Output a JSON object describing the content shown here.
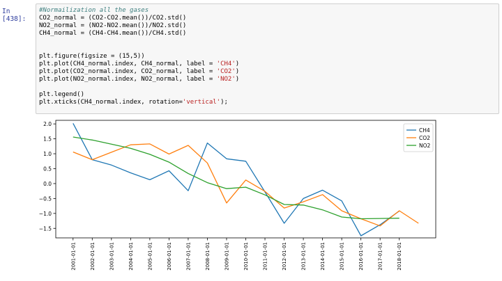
{
  "cell": {
    "prompt": "In [438]:",
    "code_lines": [
      [
        {
          "t": "#Normailization all the gases",
          "c": "cm"
        }
      ],
      [
        {
          "t": "CO2_normal = (CO2-CO2.mean())/CO2.std()",
          "c": ""
        }
      ],
      [
        {
          "t": "NO2_normal = (NO2-NO2.mean())/NO2.std()",
          "c": ""
        }
      ],
      [
        {
          "t": "CH4_normal = (CH4-CH4.mean())/CH4.std()",
          "c": ""
        }
      ],
      [],
      [],
      [
        {
          "t": "plt.figure(figsize = (15,5))",
          "c": ""
        }
      ],
      [
        {
          "t": "plt.plot(CH4_normal.index, CH4_normal, label = ",
          "c": ""
        },
        {
          "t": "'CH4'",
          "c": "st"
        },
        {
          "t": ")",
          "c": ""
        }
      ],
      [
        {
          "t": "plt.plot(CO2_normal.index, CO2_normal, label = ",
          "c": ""
        },
        {
          "t": "'CO2'",
          "c": "st"
        },
        {
          "t": ")",
          "c": ""
        }
      ],
      [
        {
          "t": "plt.plot(NO2_normal.index, NO2_normal, label = ",
          "c": ""
        },
        {
          "t": "'NO2'",
          "c": "st"
        },
        {
          "t": ")",
          "c": ""
        }
      ],
      [],
      [
        {
          "t": "plt.legend()",
          "c": ""
        }
      ],
      [
        {
          "t": "plt.xticks(CH4_normal.index, rotation=",
          "c": ""
        },
        {
          "t": "'vertical'",
          "c": "st"
        },
        {
          "t": ");",
          "c": ""
        }
      ]
    ]
  },
  "chart_data": {
    "type": "line",
    "xlabel": "",
    "ylabel": "",
    "title": "",
    "x": [
      2001,
      2002,
      2003,
      2004,
      2005,
      2006,
      2007,
      2008,
      2009,
      2010,
      2011,
      2012,
      2013,
      2014,
      2015,
      2016,
      2017,
      2018,
      2019
    ],
    "xlim": [
      2000.1,
      2019.9
    ],
    "ylim": [
      -1.82,
      2.12
    ],
    "xticks": [
      2001,
      2002,
      2003,
      2004,
      2005,
      2006,
      2007,
      2008,
      2009,
      2010,
      2011,
      2012,
      2013,
      2014,
      2015,
      2016,
      2017,
      2018
    ],
    "xtick_labels": [
      "2001-01-01",
      "2002-01-01",
      "2003-01-01",
      "2004-01-01",
      "2005-01-01",
      "2006-01-01",
      "2007-01-01",
      "2008-01-01",
      "2009-01-01",
      "2010-01-01",
      "2011-01-01",
      "2012-01-01",
      "2013-01-01",
      "2014-01-01",
      "2015-01-01",
      "2016-01-01",
      "2017-01-01",
      "2018-01-01"
    ],
    "yticks": [
      2.0,
      1.5,
      1.0,
      0.5,
      0.0,
      -0.5,
      -1.0,
      -1.5
    ],
    "ytick_labels": [
      "2.0",
      "1.5",
      "1.0",
      "0.5",
      "0.0",
      "−0.5",
      "−1.0",
      "−1.5"
    ],
    "grid": false,
    "legend_position": "top-right",
    "series": [
      {
        "name": "CH4",
        "color": "#1f77b4",
        "x": [
          2001,
          2002,
          2003,
          2004,
          2005,
          2006,
          2007,
          2008,
          2009,
          2010,
          2011,
          2012,
          2013,
          2014,
          2015,
          2016,
          2017,
          2018
        ],
        "values": [
          2.02,
          0.8,
          0.62,
          0.36,
          0.13,
          0.43,
          -0.24,
          1.36,
          0.83,
          0.75,
          -0.28,
          -1.33,
          -0.5,
          -0.22,
          -0.58,
          -1.75,
          -1.38,
          -0.92
        ]
      },
      {
        "name": "CO2",
        "color": "#ff7f0e",
        "x": [
          2001,
          2002,
          2003,
          2004,
          2005,
          2006,
          2007,
          2008,
          2009,
          2010,
          2011,
          2012,
          2013,
          2014,
          2015,
          2016,
          2017,
          2018,
          2019
        ],
        "values": [
          1.06,
          0.8,
          1.05,
          1.3,
          1.33,
          0.99,
          1.28,
          0.69,
          -0.65,
          0.12,
          -0.26,
          -0.82,
          -0.61,
          -0.37,
          -0.91,
          -1.18,
          -1.42,
          -0.91,
          -1.33
        ]
      },
      {
        "name": "NO2",
        "color": "#2ca02c",
        "x": [
          2001,
          2002,
          2003,
          2004,
          2005,
          2006,
          2007,
          2008,
          2009,
          2010,
          2011,
          2012,
          2013,
          2014,
          2015,
          2016,
          2017,
          2018
        ],
        "values": [
          1.56,
          1.46,
          1.32,
          1.18,
          0.98,
          0.72,
          0.34,
          0.03,
          -0.17,
          -0.12,
          -0.38,
          -0.7,
          -0.72,
          -0.88,
          -1.12,
          -1.18,
          -1.17,
          -1.16
        ]
      }
    ]
  }
}
